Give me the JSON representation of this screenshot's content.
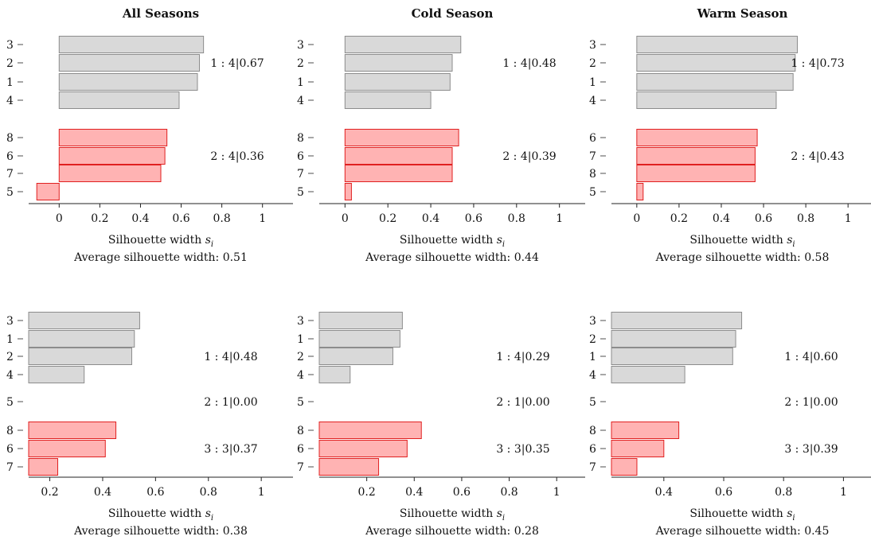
{
  "colors": {
    "gray_fill": "#d9d9d9",
    "gray_edge": "#8c8c8c",
    "red_fill": "#ffb3b3",
    "red_edge": "#e02020",
    "axis": "#222222"
  },
  "chart_data": [
    {
      "type": "bar",
      "orientation": "horizontal",
      "title": "All Seasons",
      "xlabel": "Silhouette width s_i",
      "avg_label": "Average silhouette width: 0.51",
      "xlim": [
        -0.15,
        1.15
      ],
      "xticks": [
        "0",
        "0.2",
        "0.4",
        "0.6",
        "0.8",
        "1"
      ],
      "tick_values": [
        0,
        0.2,
        0.4,
        0.6,
        0.8,
        1
      ],
      "clusters": [
        {
          "label": "1 : 4|0.67",
          "color": "gray",
          "items": [
            {
              "id": "3",
              "value": 0.71
            },
            {
              "id": "2",
              "value": 0.69
            },
            {
              "id": "1",
              "value": 0.68
            },
            {
              "id": "4",
              "value": 0.59
            }
          ]
        },
        {
          "label": "2 : 4|0.36",
          "color": "red",
          "items": [
            {
              "id": "8",
              "value": 0.53
            },
            {
              "id": "6",
              "value": 0.52
            },
            {
              "id": "7",
              "value": 0.5
            },
            {
              "id": "5",
              "value": -0.11
            }
          ]
        }
      ]
    },
    {
      "type": "bar",
      "orientation": "horizontal",
      "title": "Cold Season",
      "xlabel": "Silhouette width s_i",
      "avg_label": "Average silhouette width: 0.44",
      "xlim": [
        -0.12,
        1.12
      ],
      "xticks": [
        "0",
        "0.2",
        "0.4",
        "0.6",
        "0.8",
        "1"
      ],
      "tick_values": [
        0,
        0.2,
        0.4,
        0.6,
        0.8,
        1
      ],
      "clusters": [
        {
          "label": "1 : 4|0.48",
          "color": "gray",
          "items": [
            {
              "id": "3",
              "value": 0.54
            },
            {
              "id": "2",
              "value": 0.5
            },
            {
              "id": "1",
              "value": 0.49
            },
            {
              "id": "4",
              "value": 0.4
            }
          ]
        },
        {
          "label": "2 : 4|0.39",
          "color": "red",
          "items": [
            {
              "id": "8",
              "value": 0.53
            },
            {
              "id": "6",
              "value": 0.5
            },
            {
              "id": "7",
              "value": 0.5
            },
            {
              "id": "5",
              "value": 0.03
            }
          ]
        }
      ]
    },
    {
      "type": "bar",
      "orientation": "horizontal",
      "title": "Warm Season",
      "xlabel": "Silhouette width s_i",
      "avg_label": "Average silhouette width: 0.58",
      "xlim": [
        -0.12,
        1.12
      ],
      "xticks": [
        "0",
        "0.2",
        "0.4",
        "0.6",
        "0.8",
        "1"
      ],
      "tick_values": [
        0,
        0.2,
        0.4,
        0.6,
        0.8,
        1
      ],
      "clusters": [
        {
          "label": "1 : 4|0.73",
          "color": "gray",
          "items": [
            {
              "id": "3",
              "value": 0.76
            },
            {
              "id": "2",
              "value": 0.75
            },
            {
              "id": "1",
              "value": 0.74
            },
            {
              "id": "4",
              "value": 0.66
            }
          ]
        },
        {
          "label": "2 : 4|0.43",
          "color": "red",
          "items": [
            {
              "id": "6",
              "value": 0.57
            },
            {
              "id": "7",
              "value": 0.56
            },
            {
              "id": "8",
              "value": 0.56
            },
            {
              "id": "5",
              "value": 0.03
            }
          ]
        }
      ]
    },
    {
      "type": "bar",
      "orientation": "horizontal",
      "title": "",
      "xlabel": "Silhouette width s_i",
      "avg_label": "Average silhouette width: 0.38",
      "xlim": [
        0.12,
        1.12
      ],
      "xticks": [
        "0.2",
        "0.4",
        "0.6",
        "0.8",
        "1"
      ],
      "tick_values": [
        0.2,
        0.4,
        0.6,
        0.8,
        1
      ],
      "clusters": [
        {
          "label": "1 : 4|0.48",
          "color": "gray",
          "items": [
            {
              "id": "3",
              "value": 0.54
            },
            {
              "id": "1",
              "value": 0.52
            },
            {
              "id": "2",
              "value": 0.51
            },
            {
              "id": "4",
              "value": 0.33
            }
          ]
        },
        {
          "label": "2 : 1|0.00",
          "color": "gray",
          "items": [
            {
              "id": "5",
              "value": 0.0
            }
          ]
        },
        {
          "label": "3 : 3|0.37",
          "color": "red",
          "items": [
            {
              "id": "8",
              "value": 0.45
            },
            {
              "id": "6",
              "value": 0.41
            },
            {
              "id": "7",
              "value": 0.23
            }
          ]
        }
      ]
    },
    {
      "type": "bar",
      "orientation": "horizontal",
      "title": "",
      "xlabel": "Silhouette width s_i",
      "avg_label": "Average silhouette width: 0.28",
      "xlim": [
        0.0,
        1.12
      ],
      "xticks": [
        "0.2",
        "0.4",
        "0.6",
        "0.8",
        "1"
      ],
      "tick_values": [
        0.2,
        0.4,
        0.6,
        0.8,
        1
      ],
      "clusters": [
        {
          "label": "1 : 4|0.29",
          "color": "gray",
          "items": [
            {
              "id": "3",
              "value": 0.35
            },
            {
              "id": "1",
              "value": 0.34
            },
            {
              "id": "2",
              "value": 0.31
            },
            {
              "id": "4",
              "value": 0.13
            }
          ]
        },
        {
          "label": "2 : 1|0.00",
          "color": "gray",
          "items": [
            {
              "id": "5",
              "value": 0.0
            }
          ]
        },
        {
          "label": "3 : 3|0.35",
          "color": "red",
          "items": [
            {
              "id": "8",
              "value": 0.43
            },
            {
              "id": "6",
              "value": 0.37
            },
            {
              "id": "7",
              "value": 0.25
            }
          ]
        }
      ]
    },
    {
      "type": "bar",
      "orientation": "horizontal",
      "title": "",
      "xlabel": "Silhouette width s_i",
      "avg_label": "Average silhouette width: 0.45",
      "xlim": [
        0.225,
        1.1
      ],
      "xticks": [
        "0.4",
        "0.6",
        "0.8",
        "1"
      ],
      "tick_values": [
        0.4,
        0.6,
        0.8,
        1
      ],
      "clusters": [
        {
          "label": "1 : 4|0.60",
          "color": "gray",
          "items": [
            {
              "id": "3",
              "value": 0.66
            },
            {
              "id": "2",
              "value": 0.64
            },
            {
              "id": "1",
              "value": 0.63
            },
            {
              "id": "4",
              "value": 0.47
            }
          ]
        },
        {
          "label": "2 : 1|0.00",
          "color": "gray",
          "items": [
            {
              "id": "5",
              "value": 0.0
            }
          ]
        },
        {
          "label": "3 : 3|0.39",
          "color": "red",
          "items": [
            {
              "id": "8",
              "value": 0.45
            },
            {
              "id": "6",
              "value": 0.4
            },
            {
              "id": "7",
              "value": 0.31
            }
          ]
        }
      ]
    }
  ]
}
